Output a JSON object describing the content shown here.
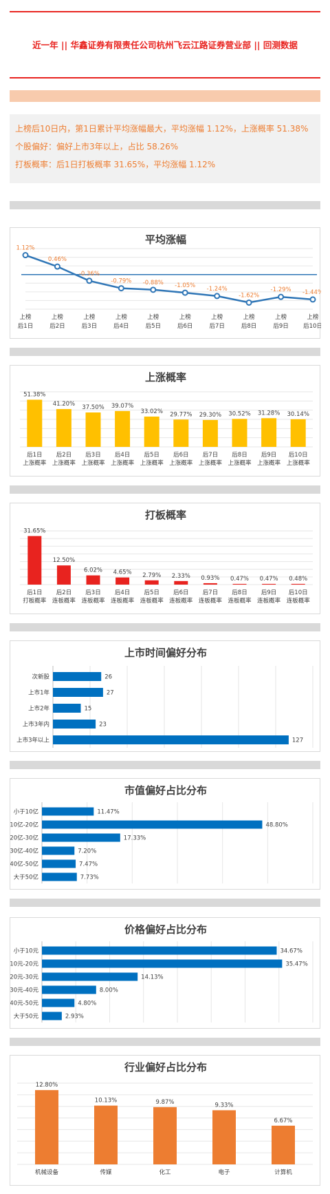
{
  "header": {
    "title": "近一年 || 华鑫证券有限责任公司杭州飞云江路证券营业部 || 回测数据"
  },
  "summary": {
    "line1": "上榜后10日内，第1日累计平均涨幅最大，平均涨幅 1.12%，上涨概率 51.38%",
    "line2": "个股偏好：偏好上市3年以上，占比 58.26%",
    "line3": "打板概率：后1日打板概率 31.65%，平均涨幅 1.12%"
  },
  "colors": {
    "accent_red": "#e8231f",
    "peach_band": "#f8cbad",
    "gray_band": "#d9d9d9",
    "summary_bg": "#f1f1f1",
    "summary_text": "#ed7d31",
    "line_blue": "#2e75b6",
    "bar_yellow": "#ffc000",
    "bar_red": "#e8231f",
    "bar_blue": "#0070c0",
    "bar_orange": "#ed7d31"
  },
  "chart_data": [
    {
      "id": "avg",
      "type": "line",
      "title": "平均涨幅",
      "categories": [
        [
          "上榜",
          "后1日"
        ],
        [
          "上榜",
          "后2日"
        ],
        [
          "上榜",
          "后3日"
        ],
        [
          "上榜",
          "后4日"
        ],
        [
          "上榜",
          "后5日"
        ],
        [
          "上榜",
          "后6日"
        ],
        [
          "上榜",
          "后7日"
        ],
        [
          "上榜",
          "后8日"
        ],
        [
          "上榜",
          "后9日"
        ],
        [
          "上榜",
          "后10日"
        ]
      ],
      "values": [
        1.12,
        0.46,
        -0.36,
        -0.79,
        -0.88,
        -1.05,
        -1.24,
        -1.62,
        -1.29,
        -1.44
      ],
      "labels": [
        "1.12%",
        "0.46%",
        "-0.36%",
        "-0.79%",
        "-0.88%",
        "-1.05%",
        "-1.24%",
        "-1.62%",
        "-1.29%",
        "-1.44%"
      ],
      "ylim": [
        -2,
        1.5
      ],
      "baseline": 0
    },
    {
      "id": "up",
      "type": "bar",
      "title": "上涨概率",
      "categories": [
        [
          "后1日",
          "上涨概率"
        ],
        [
          "后2日",
          "上涨概率"
        ],
        [
          "后3日",
          "上涨概率"
        ],
        [
          "后4日",
          "上涨概率"
        ],
        [
          "后5日",
          "上涨概率"
        ],
        [
          "后6日",
          "上涨概率"
        ],
        [
          "后7日",
          "上涨概率"
        ],
        [
          "后8日",
          "上涨概率"
        ],
        [
          "后9日",
          "上涨概率"
        ],
        [
          "后10日",
          "上涨概率"
        ]
      ],
      "values": [
        51.38,
        41.2,
        37.5,
        39.07,
        33.02,
        29.77,
        29.3,
        30.52,
        31.28,
        30.14
      ],
      "labels": [
        "51.38%",
        "41.20%",
        "37.50%",
        "39.07%",
        "33.02%",
        "29.77%",
        "29.30%",
        "30.52%",
        "31.28%",
        "30.14%"
      ],
      "ylim": [
        0,
        60
      ]
    },
    {
      "id": "board",
      "type": "bar",
      "title": "打板概率",
      "categories": [
        [
          "后1日",
          "打板概率"
        ],
        [
          "后2日",
          "连板概率"
        ],
        [
          "后3日",
          "连板概率"
        ],
        [
          "后4日",
          "连板概率"
        ],
        [
          "后5日",
          "连板概率"
        ],
        [
          "后6日",
          "连板概率"
        ],
        [
          "后7日",
          "连板概率"
        ],
        [
          "后8日",
          "连板概率"
        ],
        [
          "后9日",
          "连板概率"
        ],
        [
          "后10日",
          "连板概率"
        ]
      ],
      "values": [
        31.65,
        12.5,
        6.02,
        4.65,
        2.79,
        2.33,
        0.93,
        0.47,
        0.47,
        0.48
      ],
      "labels": [
        "31.65%",
        "12.50%",
        "6.02%",
        "4.65%",
        "2.79%",
        "2.33%",
        "0.93%",
        "0.47%",
        "0.47%",
        "0.48%"
      ],
      "ylim": [
        0,
        35
      ]
    },
    {
      "id": "listing",
      "type": "bar",
      "orientation": "horizontal",
      "title": "上市时间偏好分布",
      "categories": [
        "次新股",
        "上市1年",
        "上市2年",
        "上市3年内",
        "上市3年以上"
      ],
      "values": [
        26,
        27,
        15,
        23,
        127
      ],
      "labels": [
        "26",
        "27",
        "15",
        "23",
        "127"
      ],
      "xlim": [
        0,
        140
      ]
    },
    {
      "id": "mcap",
      "type": "bar",
      "orientation": "horizontal",
      "title": "市值偏好占比分布",
      "categories": [
        "小于10亿",
        "10亿-20亿",
        "20亿-30亿",
        "30亿-40亿",
        "40亿-50亿",
        "大于50亿"
      ],
      "values": [
        11.47,
        48.8,
        17.33,
        7.2,
        7.47,
        7.73
      ],
      "labels": [
        "11.47%",
        "48.80%",
        "17.33%",
        "7.20%",
        "7.47%",
        "7.73%"
      ],
      "xlim": [
        0,
        60
      ]
    },
    {
      "id": "price",
      "type": "bar",
      "orientation": "horizontal",
      "title": "价格偏好占比分布",
      "categories": [
        "小于10元",
        "10元-20元",
        "20元-30元",
        "30元-40元",
        "40元-50元",
        "大于50元"
      ],
      "values": [
        34.67,
        35.47,
        14.13,
        8.0,
        4.8,
        2.93
      ],
      "labels": [
        "34.67%",
        "35.47%",
        "14.13%",
        "8.00%",
        "4.80%",
        "2.93%"
      ],
      "xlim": [
        0,
        40
      ]
    },
    {
      "id": "industry",
      "type": "bar",
      "title": "行业偏好占比分布",
      "categories": [
        "机械设备",
        "传媒",
        "化工",
        "电子",
        "计算机"
      ],
      "values": [
        12.8,
        10.13,
        9.87,
        9.33,
        6.67
      ],
      "labels": [
        "12.80%",
        "10.13%",
        "9.87%",
        "9.33%",
        "6.67%"
      ],
      "ylim": [
        0,
        14
      ]
    }
  ]
}
